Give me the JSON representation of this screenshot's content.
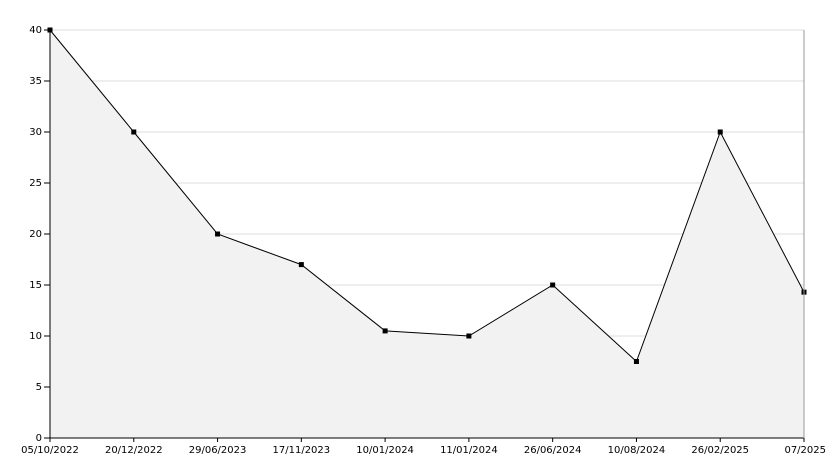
{
  "chart_data": {
    "type": "area",
    "categories": [
      "05/10/2022",
      "20/12/2022",
      "29/06/2023",
      "17/11/2023",
      "10/01/2024",
      "11/01/2024",
      "26/06/2024",
      "10/08/2024",
      "26/02/2025",
      "07/2025"
    ],
    "values": [
      40,
      30,
      20,
      17,
      10.5,
      10,
      15,
      7.5,
      30,
      14.3
    ],
    "color": "#000000",
    "fill": "#f2f2f2",
    "ylim": [
      0,
      40
    ],
    "yticks": [
      0,
      5,
      10,
      15,
      20,
      25,
      30,
      35,
      40
    ],
    "grid": true
  }
}
